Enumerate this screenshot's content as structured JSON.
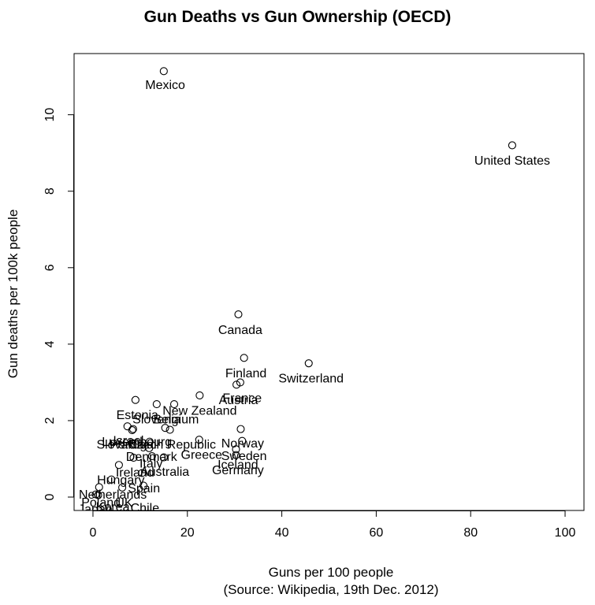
{
  "chart_data": {
    "type": "scatter",
    "title": "Gun Deaths vs Gun Ownership (OECD)",
    "xlabel": "Guns per 100 people",
    "xlabel_source": "(Source: Wikipedia, 19th Dec. 2012)",
    "ylabel": "Gun deaths per 100k people",
    "xlim": [
      -4,
      104
    ],
    "ylim": [
      -0.35,
      11.6
    ],
    "xticks": [
      0,
      20,
      40,
      60,
      80,
      100
    ],
    "yticks": [
      0,
      2,
      4,
      6,
      8,
      10
    ],
    "grid": false,
    "points": [
      {
        "label": "Mexico",
        "x": 15,
        "y": 11.14
      },
      {
        "label": "United States",
        "x": 88.8,
        "y": 9.2
      },
      {
        "label": "Canada",
        "x": 30.8,
        "y": 4.78
      },
      {
        "label": "Finland",
        "x": 32,
        "y": 3.64
      },
      {
        "label": "Switzerland",
        "x": 45.7,
        "y": 3.5
      },
      {
        "label": "France",
        "x": 31.2,
        "y": 3.0
      },
      {
        "label": "Austria",
        "x": 30.4,
        "y": 2.94
      },
      {
        "label": "New Zealand",
        "x": 22.6,
        "y": 2.66
      },
      {
        "label": "Estonia",
        "x": 9,
        "y": 2.54
      },
      {
        "label": "Slovenia",
        "x": 13.5,
        "y": 2.43
      },
      {
        "label": "Belgium",
        "x": 17.2,
        "y": 2.43
      },
      {
        "label": "Israel",
        "x": 7.3,
        "y": 1.85
      },
      {
        "label": "Luxembourg",
        "x": 15.3,
        "y": 1.81
      },
      {
        "label": "Slovakia",
        "x": 8.3,
        "y": 1.75
      },
      {
        "label": "Portugal",
        "x": 8.5,
        "y": 1.78
      },
      {
        "label": "Czech Republic",
        "x": 16.3,
        "y": 1.76
      },
      {
        "label": "Norway",
        "x": 31.3,
        "y": 1.78
      },
      {
        "label": "Greece",
        "x": 22.5,
        "y": 1.5
      },
      {
        "label": "Sweden",
        "x": 31.6,
        "y": 1.47
      },
      {
        "label": "Iceland",
        "x": 30.3,
        "y": 1.25
      },
      {
        "label": "Germany",
        "x": 30.3,
        "y": 1.1
      },
      {
        "label": "Denmark",
        "x": 12,
        "y": 1.45
      },
      {
        "label": "Italy",
        "x": 11.9,
        "y": 1.28
      },
      {
        "label": "Ireland",
        "x": 8.6,
        "y": 1.03
      },
      {
        "label": "Australia",
        "x": 15,
        "y": 1.04
      },
      {
        "label": "Turkey",
        "x": 12.5,
        "y": 1.07
      },
      {
        "label": "Hungary",
        "x": 5.5,
        "y": 0.84
      },
      {
        "label": "Spain",
        "x": 10.4,
        "y": 0.63
      },
      {
        "label": "Netherlands",
        "x": 3.9,
        "y": 0.46
      },
      {
        "label": "Poland",
        "x": 1.3,
        "y": 0.26
      },
      {
        "label": "UK",
        "x": 6.2,
        "y": 0.25
      },
      {
        "label": "Chile",
        "x": 10.7,
        "y": 0.3
      },
      {
        "label": "Japan",
        "x": 0.6,
        "y": 0.07
      },
      {
        "label": "Korea",
        "x": 1.1,
        "y": 0.05
      }
    ],
    "labels": [
      {
        "text": "Mexico",
        "x": 15.3,
        "y": 10.8
      },
      {
        "text": "United States",
        "x": 88.8,
        "y": 8.82
      },
      {
        "text": "Canada",
        "x": 31.2,
        "y": 4.39
      },
      {
        "text": "Finland",
        "x": 32.4,
        "y": 3.26
      },
      {
        "text": "Switzerland",
        "x": 46.2,
        "y": 3.12
      },
      {
        "text": "France",
        "x": 31.6,
        "y": 2.61
      },
      {
        "text": "Austria",
        "x": 30.8,
        "y": 2.56
      },
      {
        "text": "New Zealand",
        "x": 22.6,
        "y": 2.28
      },
      {
        "text": "Estonia",
        "x": 9.4,
        "y": 2.16
      },
      {
        "text": "Slovenia",
        "x": 13.5,
        "y": 2.05
      },
      {
        "text": "Belgium",
        "x": 17.6,
        "y": 2.05
      },
      {
        "text": "Israel",
        "x": 7.5,
        "y": 1.49
      },
      {
        "text": "Luxembourg",
        "x": 9.3,
        "y": 1.46
      },
      {
        "text": "Slovakia",
        "x": 5.8,
        "y": 1.39
      },
      {
        "text": "Portugal",
        "x": 8.5,
        "y": 1.39
      },
      {
        "text": "Czech Republic",
        "x": 16.7,
        "y": 1.39
      },
      {
        "text": "Norway",
        "x": 31.7,
        "y": 1.42
      },
      {
        "text": "Greece",
        "x": 23.0,
        "y": 1.12
      },
      {
        "text": "Sweden",
        "x": 32.0,
        "y": 1.09
      },
      {
        "text": "Iceland",
        "x": 30.7,
        "y": 0.87
      },
      {
        "text": "Germany",
        "x": 30.7,
        "y": 0.72
      },
      {
        "text": "Denmark",
        "x": 12.4,
        "y": 1.07
      },
      {
        "text": "Italy",
        "x": 12.3,
        "y": 0.9
      },
      {
        "text": "Ireland",
        "x": 8.9,
        "y": 0.66
      },
      {
        "text": "Australia",
        "x": 15.2,
        "y": 0.68
      },
      {
        "text": "Hungary",
        "x": 5.9,
        "y": 0.46
      },
      {
        "text": "Spain",
        "x": 10.8,
        "y": 0.25
      },
      {
        "text": "Netherlands",
        "x": 4.2,
        "y": 0.08
      },
      {
        "text": "Poland",
        "x": 1.7,
        "y": -0.12
      },
      {
        "text": "UK",
        "x": 6.6,
        "y": -0.13
      },
      {
        "text": "Chile",
        "x": 11.0,
        "y": -0.27
      },
      {
        "text": "Japan",
        "x": 0.5,
        "y": -0.3
      },
      {
        "text": "Korea",
        "x": 4.2,
        "y": -0.24
      }
    ]
  }
}
